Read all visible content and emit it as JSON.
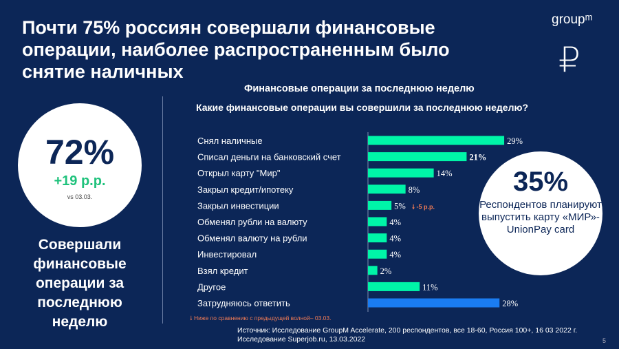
{
  "title": "Почти 75% россиян совершали финансовые операции, наиболее распространенным было снятие наличных",
  "logo": "groupᵐ",
  "ruble_icon": "ruble-sign",
  "subtitle": "Финансовые операции за последнюю неделю",
  "question": "Какие финансовые операции вы совершили за последнюю неделю?",
  "left_stat": {
    "value": "72%",
    "change": "+19 p.p.",
    "vs": "vs 03.03.",
    "description": "Совершали финансовые операции за последнюю неделю"
  },
  "right_stat": {
    "value": "35%",
    "description": "Респондентов планируют выпустить карту «МИР»-UnionPay card"
  },
  "colors": {
    "background": "#0c2657",
    "bar": "#00f5a8",
    "bar_highlight": "#1a7cf2",
    "decrease": "#f07b55",
    "increase": "#1fc27c"
  },
  "chart_data": {
    "type": "bar",
    "orientation": "horizontal",
    "categories": [
      "Снял наличные",
      "Списал деньги на банковский счет",
      "Открыл карту \"Мир\"",
      "Закрыл кредит/ипотеку",
      "Закрыл инвестиции",
      "Обменял рубли на валюту",
      "Обменял валюту на рубли",
      "Инвестировал",
      "Взял кредит",
      "Другое",
      "Затрудняюсь ответить"
    ],
    "values": [
      29,
      21,
      14,
      8,
      5,
      4,
      4,
      4,
      2,
      11,
      28
    ],
    "labels": [
      "29%",
      "21%",
      "14%",
      "8%",
      "5%",
      "4%",
      "4%",
      "4%",
      "2%",
      "11%",
      "28%"
    ],
    "annotations": [
      {
        "category": "Закрыл инвестиции",
        "text": "-5 p.p.",
        "direction": "down"
      }
    ],
    "xlim": [
      0,
      30
    ]
  },
  "note": "Ниже по сравнению с предыдущей волной– 03.03.",
  "source": [
    "Источник: Исследование GroupM Accelerate, 200 респондентов, все 18-60, Россия 100+, 16 03 2022 г.",
    "Исследование Superjob.ru, 13.03.2022"
  ],
  "page": "5"
}
